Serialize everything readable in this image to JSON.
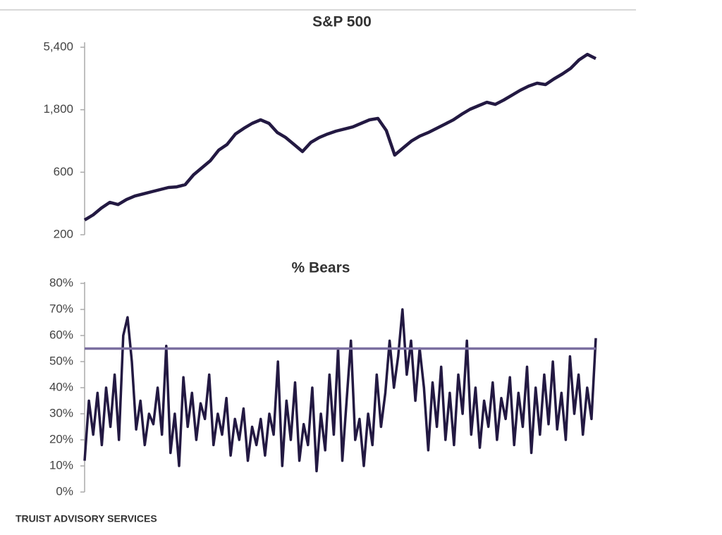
{
  "footer": "TRUIST ADVISORY SERVICES",
  "chart_data": [
    {
      "type": "line",
      "title": "S&P 500",
      "log_scale": true,
      "color": "#231942",
      "ylim": [
        200,
        5400
      ],
      "yticks": [
        {
          "value": 5400,
          "label": "5,400"
        },
        {
          "value": 1800,
          "label": "1,800"
        },
        600,
        200
      ],
      "values": [
        259,
        283,
        320,
        353,
        340,
        371,
        395,
        410,
        426,
        442,
        459,
        464,
        482,
        573,
        649,
        735,
        885,
        977,
        1175,
        1298,
        1416,
        1507,
        1416,
        1205,
        1104,
        977,
        863,
        1014,
        1104,
        1175,
        1236,
        1282,
        1330,
        1416,
        1507,
        1545,
        1250,
        811,
        918,
        1038,
        1132,
        1205,
        1298,
        1397,
        1507,
        1663,
        1816,
        1932,
        2053,
        1977,
        2133,
        2323,
        2535,
        2729,
        2871,
        2801,
        3091,
        3371,
        3725,
        4318,
        4764,
        4426
      ]
    },
    {
      "type": "line",
      "title": "% Bears",
      "log_scale": false,
      "color": "#231942",
      "ylim": [
        0,
        80
      ],
      "yticks": [
        {
          "value": 80,
          "label": "80%"
        },
        {
          "value": 70,
          "label": "70%"
        },
        {
          "value": 60,
          "label": "60%"
        },
        {
          "value": 50,
          "label": "50%"
        },
        {
          "value": 40,
          "label": "40%"
        },
        {
          "value": 30,
          "label": "30%"
        },
        {
          "value": 20,
          "label": "20%"
        },
        {
          "value": 10,
          "label": "10%"
        },
        {
          "value": 0,
          "label": "0%"
        }
      ],
      "reference_line": {
        "value": 55,
        "color": "#7b6fa0"
      },
      "values": [
        12,
        35,
        22,
        38,
        18,
        40,
        25,
        45,
        20,
        60,
        67,
        50,
        24,
        35,
        18,
        30,
        26,
        40,
        22,
        56,
        15,
        30,
        10,
        44,
        25,
        38,
        20,
        34,
        28,
        45,
        18,
        30,
        22,
        36,
        14,
        28,
        20,
        32,
        12,
        25,
        18,
        28,
        14,
        30,
        22,
        50,
        10,
        35,
        20,
        42,
        12,
        26,
        18,
        40,
        8,
        30,
        16,
        45,
        22,
        55,
        12,
        35,
        58,
        20,
        28,
        10,
        30,
        18,
        45,
        25,
        38,
        58,
        40,
        52,
        70,
        45,
        58,
        35,
        55,
        40,
        16,
        42,
        25,
        48,
        20,
        38,
        18,
        45,
        30,
        58,
        22,
        40,
        17,
        35,
        25,
        42,
        20,
        36,
        28,
        44,
        18,
        38,
        25,
        48,
        15,
        40,
        22,
        45,
        26,
        50,
        24,
        38,
        20,
        52,
        30,
        45,
        22,
        40,
        28,
        59
      ]
    }
  ]
}
